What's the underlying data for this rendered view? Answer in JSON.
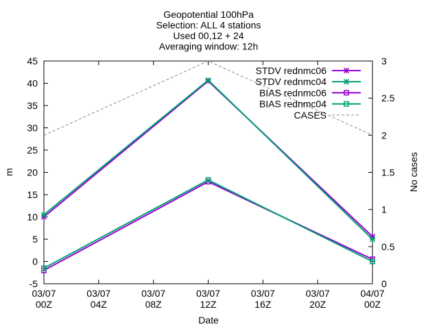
{
  "chart_data": {
    "type": "line",
    "title_lines": [
      "Geopotential 100hPa",
      "Selection: ALL       4 stations",
      "Used 00,12 + 24",
      "Averaging window: 12h"
    ],
    "xlabel": "Date",
    "ylabel": "m",
    "y2label": "No cases",
    "x_ticks": [
      "03/07\n00Z",
      "03/07\n04Z",
      "03/07\n08Z",
      "03/07\n12Z",
      "03/07\n16Z",
      "03/07\n20Z",
      "04/07\n00Z"
    ],
    "x_hours": [
      0,
      12,
      24
    ],
    "ylim": [
      -5,
      45
    ],
    "y_ticks": [
      -5,
      0,
      5,
      10,
      15,
      20,
      25,
      30,
      35,
      40,
      45
    ],
    "y2lim": [
      0,
      3
    ],
    "y2_ticks": [
      0,
      0.5,
      1,
      1.5,
      2,
      2.5,
      3
    ],
    "legend_position": "top-right",
    "series": [
      {
        "name": "STDV rednmc06",
        "color": "#9400d3",
        "marker": "star",
        "axis": "y",
        "values": [
          10.0,
          40.5,
          5.6
        ]
      },
      {
        "name": "STDV rednmc04",
        "color": "#009e73",
        "marker": "star",
        "axis": "y",
        "values": [
          10.5,
          40.7,
          5.0
        ]
      },
      {
        "name": "BIAS rednmc06",
        "color": "#9400d3",
        "marker": "square",
        "axis": "y",
        "values": [
          -2.0,
          17.9,
          0.5
        ]
      },
      {
        "name": "BIAS rednmc04",
        "color": "#009e73",
        "marker": "square",
        "axis": "y",
        "values": [
          -1.5,
          18.3,
          0.0
        ]
      },
      {
        "name": "CASES",
        "color": "#999999",
        "marker": "none",
        "dashed": true,
        "axis": "y2",
        "values": [
          2,
          3,
          2
        ]
      }
    ]
  }
}
